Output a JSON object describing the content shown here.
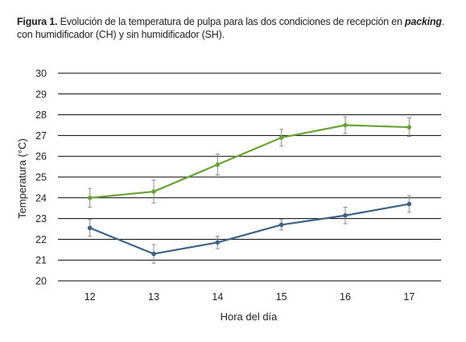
{
  "caption": {
    "label": "Figura 1.",
    "text_1": " Evolución de la temperatura de pulpa para las dos condiciones de recepción en ",
    "emphasis": "packing",
    "text_2": ". con humidificador (CH) y sin humidificador (SH)."
  },
  "chart_data": {
    "type": "line",
    "xlabel": "Hora del día",
    "ylabel": "Temperatura (°C)",
    "categories": [
      "12",
      "13",
      "14",
      "15",
      "16",
      "17"
    ],
    "y_ticks": [
      "20",
      "21",
      "22",
      "23",
      "24",
      "25",
      "26",
      "27",
      "28",
      "29",
      "30"
    ],
    "ylim": [
      20,
      30
    ],
    "grid": "horizontal",
    "legend": "none",
    "error_bars": true,
    "series": [
      {
        "color": "#6aa23a",
        "values": [
          24.0,
          24.3,
          25.6,
          26.9,
          27.5,
          27.4
        ],
        "errors": [
          0.45,
          0.55,
          0.5,
          0.4,
          0.4,
          0.45
        ]
      },
      {
        "color": "#3e6384",
        "values": [
          22.55,
          21.3,
          21.85,
          22.7,
          23.15,
          23.7
        ],
        "errors": [
          0.4,
          0.45,
          0.3,
          0.25,
          0.4,
          0.4
        ]
      }
    ]
  }
}
